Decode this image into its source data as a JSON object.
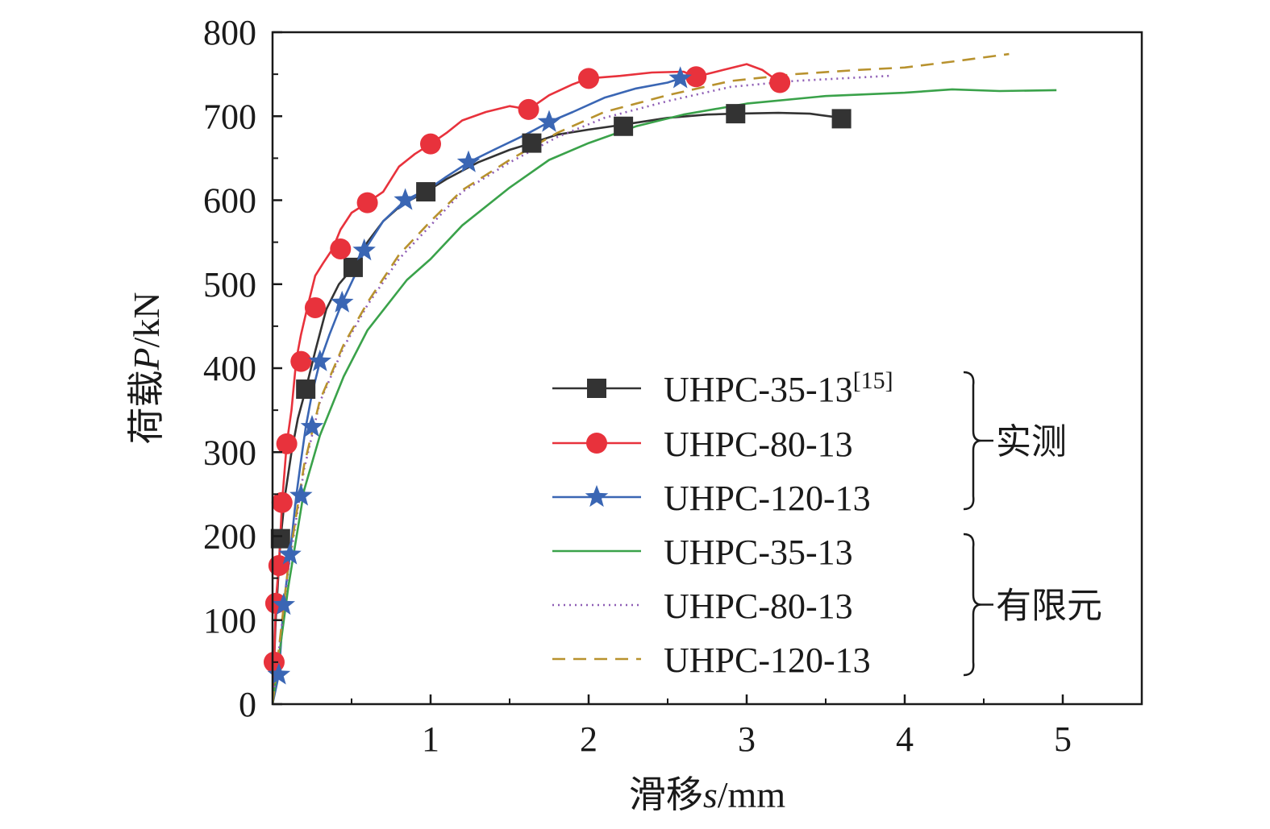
{
  "chart_data": {
    "type": "line",
    "xlabel": {
      "prefix": "滑移",
      "var": "s",
      "unit": "/mm"
    },
    "ylabel": {
      "prefix": "荷载",
      "var": "P",
      "unit": "/kN"
    },
    "xlim": [
      0,
      5.5
    ],
    "ylim": [
      0,
      800
    ],
    "xticks": [
      1,
      2,
      3,
      4,
      5
    ],
    "yticks": [
      0,
      100,
      200,
      300,
      400,
      500,
      600,
      700,
      800
    ],
    "legend_groups": [
      {
        "label": "实测",
        "series": [
          0,
          1,
          2
        ]
      },
      {
        "label": "有限元",
        "series": [
          3,
          4,
          5
        ]
      }
    ],
    "series": [
      {
        "name": "UHPC-35-13",
        "name_sup": "[15]",
        "group": "实测",
        "color": "#333333",
        "marker": "square",
        "dash": "solid",
        "x": [
          0.0,
          0.02,
          0.05,
          0.08,
          0.12,
          0.16,
          0.21,
          0.27,
          0.34,
          0.42,
          0.51,
          0.6,
          0.7,
          0.82,
          0.97,
          1.1,
          1.3,
          1.5,
          1.64,
          1.8,
          2.0,
          2.22,
          2.5,
          2.75,
          2.93,
          3.2,
          3.4,
          3.6
        ],
        "y": [
          0,
          100,
          195,
          250,
          300,
          340,
          375,
          420,
          470,
          500,
          520,
          550,
          575,
          595,
          610,
          625,
          645,
          660,
          668,
          678,
          684,
          690,
          698,
          702,
          703,
          704,
          703,
          698
        ],
        "marker_x": [
          0.05,
          0.21,
          0.51,
          0.97,
          1.64,
          2.22,
          2.93,
          3.6
        ],
        "marker_y": [
          197,
          375,
          520,
          610,
          668,
          688,
          703,
          697
        ]
      },
      {
        "name": "UHPC-80-13",
        "group": "实测",
        "color": "#e8323c",
        "marker": "circle",
        "dash": "solid",
        "x": [
          0.0,
          0.01,
          0.02,
          0.04,
          0.06,
          0.09,
          0.12,
          0.15,
          0.18,
          0.22,
          0.27,
          0.32,
          0.38,
          0.43,
          0.5,
          0.6,
          0.7,
          0.8,
          0.9,
          1.0,
          1.1,
          1.2,
          1.35,
          1.5,
          1.62,
          1.75,
          1.9,
          2.0,
          2.2,
          2.4,
          2.6,
          2.68,
          2.85,
          3.0,
          3.1,
          3.21
        ],
        "y": [
          0,
          50,
          120,
          165,
          240,
          310,
          350,
          410,
          440,
          472,
          510,
          525,
          542,
          565,
          585,
          597,
          610,
          640,
          655,
          667,
          680,
          695,
          705,
          712,
          708,
          725,
          738,
          745,
          748,
          752,
          753,
          747,
          755,
          762,
          755,
          740
        ],
        "marker_x": [
          0.01,
          0.02,
          0.04,
          0.06,
          0.09,
          0.18,
          0.27,
          0.43,
          0.6,
          1.0,
          1.62,
          2.0,
          2.68,
          3.21
        ],
        "marker_y": [
          50,
          120,
          165,
          240,
          310,
          408,
          472,
          542,
          597,
          667,
          708,
          745,
          747,
          740
        ]
      },
      {
        "name": "UHPC-120-13",
        "group": "实测",
        "color": "#3a66b4",
        "marker": "star",
        "dash": "solid",
        "x": [
          0.0,
          0.04,
          0.07,
          0.11,
          0.15,
          0.18,
          0.21,
          0.25,
          0.3,
          0.36,
          0.44,
          0.52,
          0.58,
          0.7,
          0.84,
          1.0,
          1.1,
          1.24,
          1.4,
          1.6,
          1.75,
          1.9,
          2.1,
          2.3,
          2.5,
          2.58
        ],
        "y": [
          0,
          35,
          118,
          178,
          248,
          290,
          330,
          370,
          408,
          440,
          478,
          510,
          540,
          575,
          600,
          615,
          628,
          645,
          660,
          678,
          693,
          705,
          722,
          733,
          740,
          745
        ],
        "marker_x": [
          0.04,
          0.07,
          0.11,
          0.18,
          0.25,
          0.3,
          0.44,
          0.58,
          0.84,
          1.24,
          1.75,
          2.58
        ],
        "marker_y": [
          35,
          118,
          178,
          248,
          330,
          408,
          478,
          540,
          600,
          645,
          693,
          745
        ]
      },
      {
        "name": "UHPC-35-13",
        "group": "有限元",
        "color": "#3aa24a",
        "marker": "none",
        "dash": "solid",
        "x": [
          0.0,
          0.1,
          0.2,
          0.3,
          0.45,
          0.6,
          0.85,
          1.0,
          1.2,
          1.5,
          1.75,
          2.0,
          2.3,
          2.6,
          3.0,
          3.5,
          4.0,
          4.3,
          4.6,
          4.96
        ],
        "y": [
          0,
          140,
          255,
          320,
          390,
          445,
          505,
          530,
          570,
          615,
          648,
          668,
          688,
          702,
          715,
          724,
          728,
          732,
          730,
          731
        ],
        "marker_x": [],
        "marker_y": []
      },
      {
        "name": "UHPC-80-13",
        "group": "有限元",
        "color": "#8e5db5",
        "marker": "none",
        "dash": "2,5",
        "x": [
          0.0,
          0.1,
          0.2,
          0.3,
          0.45,
          0.6,
          0.8,
          1.0,
          1.2,
          1.5,
          1.8,
          2.1,
          2.5,
          2.9,
          3.3,
          3.6,
          3.9
        ],
        "y": [
          0,
          160,
          280,
          360,
          425,
          475,
          530,
          570,
          610,
          645,
          675,
          698,
          718,
          735,
          742,
          745,
          748
        ],
        "marker_x": [],
        "marker_y": []
      },
      {
        "name": "UHPC-120-13",
        "group": "有限元",
        "color": "#b8922e",
        "marker": "none",
        "dash": "16,10",
        "x": [
          0.0,
          0.1,
          0.2,
          0.3,
          0.45,
          0.6,
          0.8,
          1.0,
          1.2,
          1.5,
          1.8,
          2.1,
          2.5,
          2.9,
          3.3,
          3.7,
          4.0,
          4.3,
          4.66
        ],
        "y": [
          0,
          165,
          285,
          362,
          428,
          478,
          535,
          575,
          612,
          648,
          680,
          705,
          725,
          742,
          750,
          755,
          758,
          765,
          774
        ],
        "marker_x": [],
        "marker_y": []
      }
    ]
  }
}
